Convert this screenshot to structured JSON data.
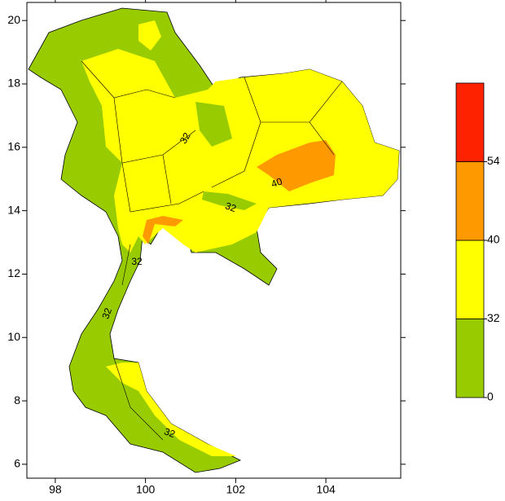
{
  "map": {
    "xlim": [
      97.37,
      105.66
    ],
    "ylim": [
      5.56,
      20.57
    ],
    "xticks": [
      98,
      100,
      102,
      104
    ],
    "yticks": [
      6,
      8,
      10,
      12,
      14,
      16,
      18,
      20
    ],
    "contour_labels": [
      "32",
      "32",
      "40",
      "32",
      "32",
      "32"
    ],
    "legend": {
      "boundaries": [
        0,
        32,
        40,
        54
      ],
      "colors": [
        "#99cc00",
        "#ffff00",
        "#ff9900",
        "#ff2200"
      ]
    }
  }
}
